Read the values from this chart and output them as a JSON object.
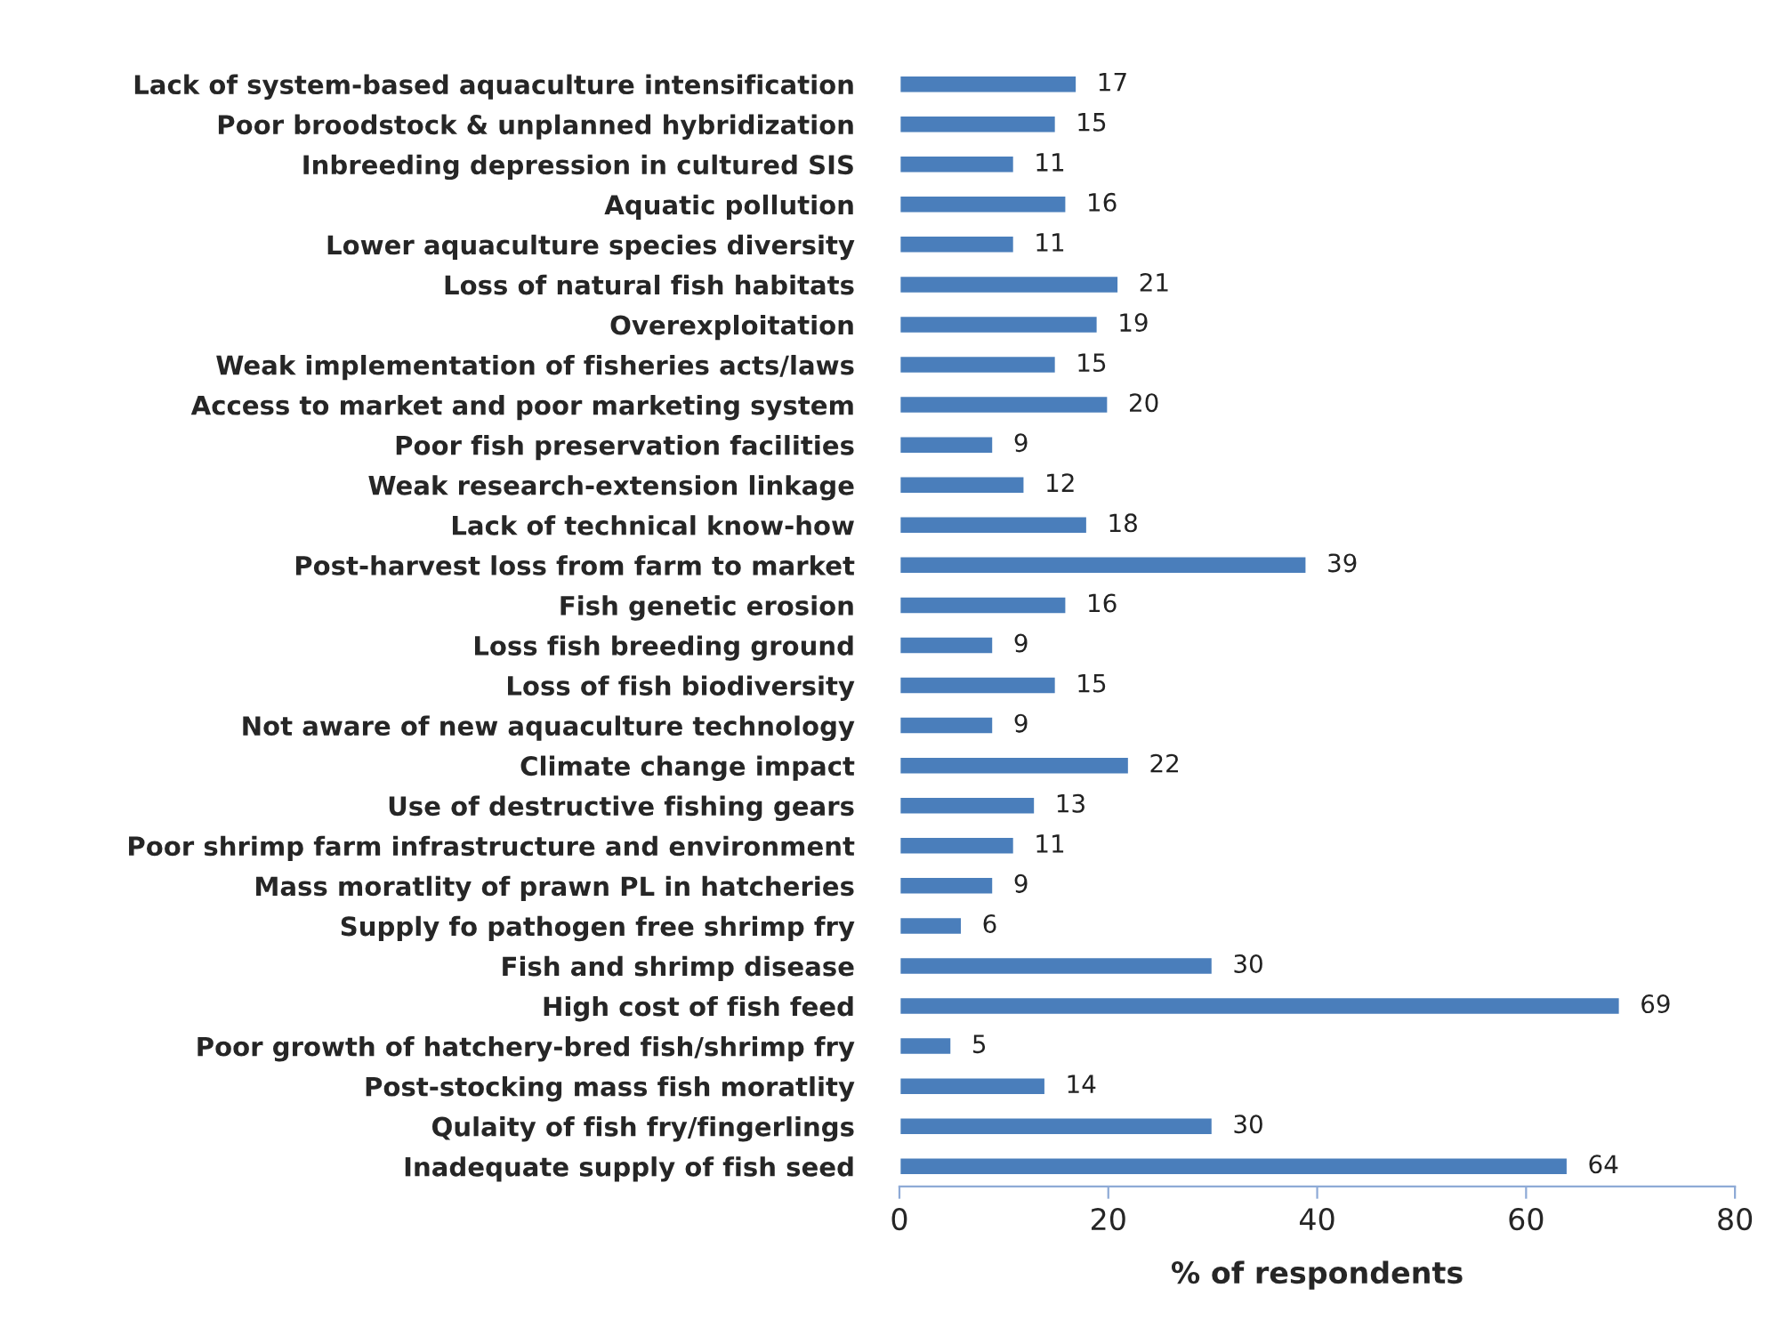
{
  "chart_data": {
    "type": "bar",
    "orientation": "horizontal",
    "xlabel": "% of respondents",
    "categories": [
      "Lack of system-based aquaculture intensification",
      "Poor broodstock & unplanned hybridization",
      "Inbreeding depression in cultured SIS",
      "Aquatic pollution",
      "Lower aquaculture species diversity",
      "Loss of natural fish habitats",
      "Overexploitation",
      "Weak implementation of fisheries acts/laws",
      "Access to market and poor marketing system",
      "Poor fish preservation facilities",
      "Weak research-extension linkage",
      "Lack of technical know-how",
      "Post-harvest loss from farm to market",
      "Fish genetic erosion",
      "Loss fish breeding ground",
      "Loss of fish biodiversity",
      "Not aware of new aquaculture technology",
      "Climate change impact",
      "Use of destructive fishing gears",
      "Poor shrimp farm infrastructure and environment",
      "Mass moratlity of prawn PL in hatcheries",
      "Supply fo pathogen free shrimp fry",
      "Fish and shrimp disease",
      "High cost of fish feed",
      "Poor growth of hatchery-bred fish/shrimp fry",
      "Post-stocking mass fish moratlity",
      "Qulaity of fish fry/fingerlings",
      "Inadequate supply of fish seed"
    ],
    "values": [
      17,
      15,
      11,
      16,
      11,
      21,
      19,
      15,
      20,
      9,
      12,
      18,
      39,
      16,
      9,
      15,
      9,
      22,
      13,
      11,
      9,
      6,
      30,
      69,
      5,
      14,
      30,
      64
    ],
    "color": "#4a7ebb",
    "data_labels": true,
    "xlim": [
      0,
      80
    ],
    "xticks": [
      0,
      20,
      40,
      60,
      80
    ],
    "grid": false,
    "legend": false
  }
}
